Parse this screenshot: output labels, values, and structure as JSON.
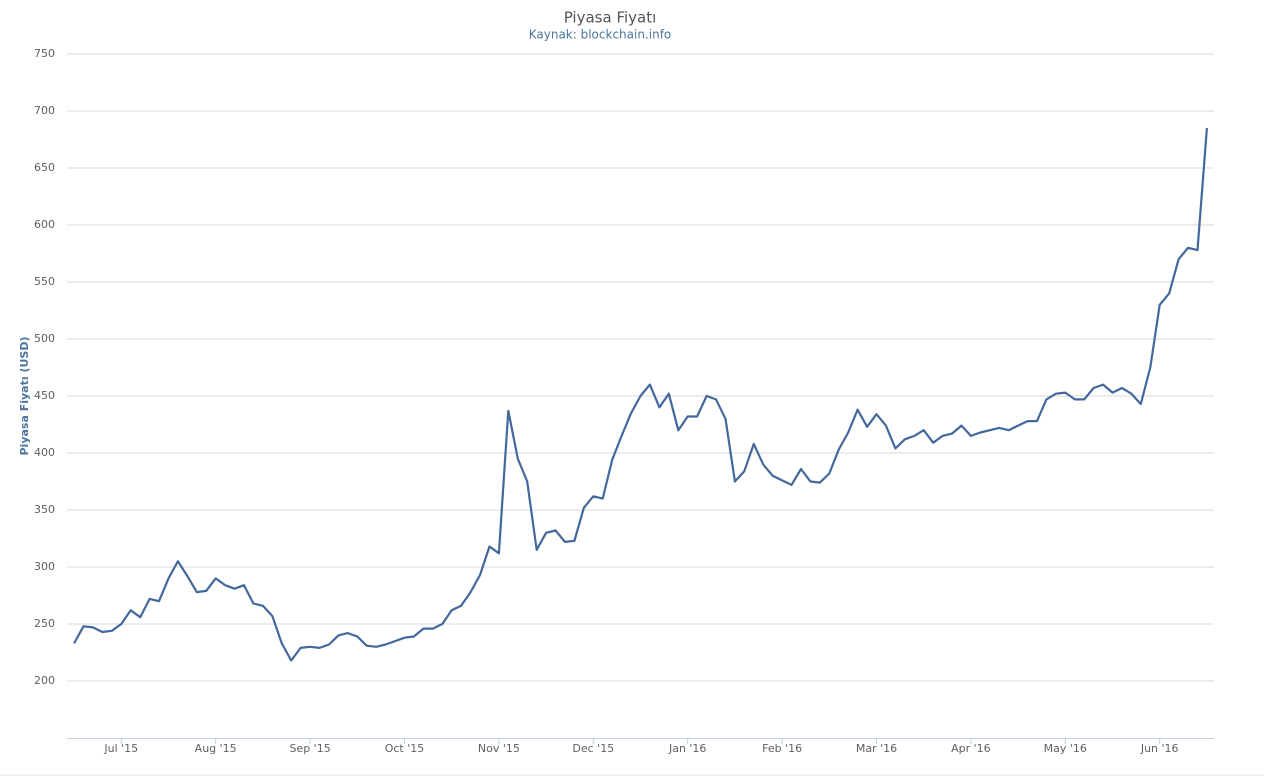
{
  "chart_data": {
    "type": "line",
    "title": "Piyasa Fiyatı",
    "subtitle": "Kaynak: blockchain.info",
    "y_label": "Piyasa Fiyatı (USD)",
    "color": "#43689b",
    "grid": true,
    "ylim": [
      150,
      750
    ],
    "yticks": [
      200,
      250,
      300,
      350,
      400,
      450,
      500,
      550,
      600,
      650,
      700,
      750
    ],
    "categories": [
      null,
      null,
      null,
      null,
      null,
      "Jul '15",
      null,
      null,
      null,
      null,
      null,
      null,
      null,
      null,
      null,
      "Aug '15",
      null,
      null,
      null,
      null,
      null,
      null,
      null,
      null,
      null,
      "Sep '15",
      null,
      null,
      null,
      null,
      null,
      null,
      null,
      null,
      null,
      "Oct '15",
      null,
      null,
      null,
      null,
      null,
      null,
      null,
      null,
      null,
      "Nov '15",
      null,
      null,
      null,
      null,
      null,
      null,
      null,
      null,
      null,
      "Dec '15",
      null,
      null,
      null,
      null,
      null,
      null,
      null,
      null,
      null,
      "Jan '16",
      null,
      null,
      null,
      null,
      null,
      null,
      null,
      null,
      null,
      "Feb '16",
      null,
      null,
      null,
      null,
      null,
      null,
      null,
      null,
      null,
      "Mar '16",
      null,
      null,
      null,
      null,
      null,
      null,
      null,
      null,
      null,
      "Apr '16",
      null,
      null,
      null,
      null,
      null,
      null,
      null,
      null,
      null,
      "May '16",
      null,
      null,
      null,
      null,
      null,
      null,
      null,
      null,
      null,
      "Jun '16",
      null,
      null,
      null,
      null,
      null
    ],
    "values": [
      233,
      248,
      247,
      243,
      244,
      250,
      262,
      256,
      272,
      270,
      290,
      305,
      292,
      278,
      279,
      290,
      284,
      281,
      284,
      268,
      266,
      257,
      233,
      218,
      229,
      230,
      229,
      232,
      240,
      242,
      239,
      231,
      230,
      232,
      235,
      238,
      239,
      246,
      246,
      250,
      262,
      266,
      278,
      293,
      318,
      312,
      437,
      395,
      375,
      315,
      330,
      332,
      322,
      323,
      352,
      362,
      360,
      394,
      415,
      435,
      450,
      460,
      440,
      452,
      420,
      432,
      432,
      450,
      447,
      430,
      375,
      384,
      408,
      390,
      380,
      376,
      372,
      386,
      375,
      374,
      382,
      403,
      418,
      438,
      423,
      434,
      424,
      404,
      412,
      415,
      420,
      409,
      415,
      417,
      424,
      415,
      418,
      420,
      422,
      420,
      424,
      428,
      428,
      447,
      452,
      453,
      447,
      447,
      457,
      460,
      453,
      457,
      452,
      443,
      475,
      530,
      540,
      570,
      580,
      578,
      685
    ]
  }
}
